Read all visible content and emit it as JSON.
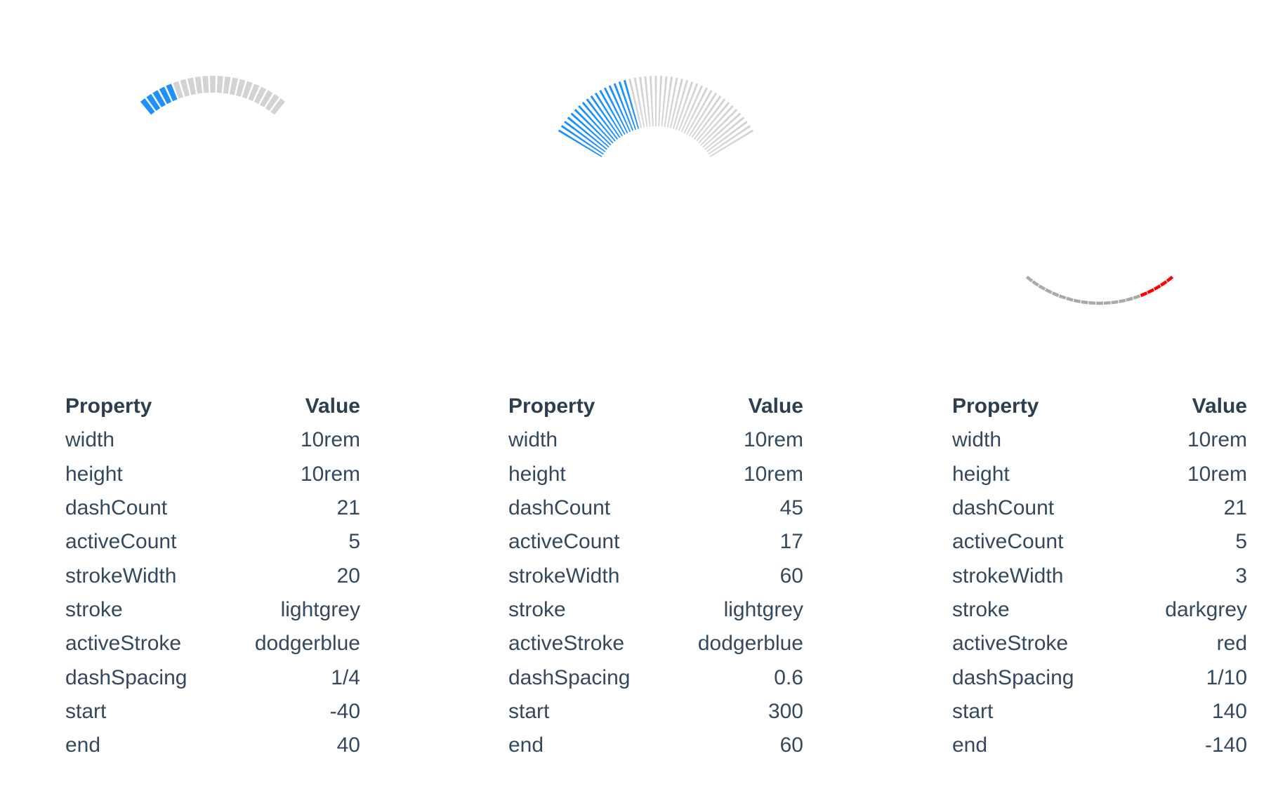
{
  "table_headers": {
    "property": "Property",
    "value": "Value"
  },
  "gauges": [
    {
      "config": {
        "dashCount": 21,
        "activeCount": 5,
        "strokeWidth": 20,
        "stroke": "#d3d3d3",
        "activeStroke": "#1e90ff",
        "dashSpacing": 0.25,
        "start": -40,
        "end": 40
      },
      "rows": [
        {
          "property": "width",
          "value": "10rem"
        },
        {
          "property": "height",
          "value": "10rem"
        },
        {
          "property": "dashCount",
          "value": "21"
        },
        {
          "property": "activeCount",
          "value": "5"
        },
        {
          "property": "strokeWidth",
          "value": "20"
        },
        {
          "property": "stroke",
          "value": "lightgrey"
        },
        {
          "property": "activeStroke",
          "value": "dodgerblue"
        },
        {
          "property": "dashSpacing",
          "value": "1/4"
        },
        {
          "property": "start",
          "value": "-40"
        },
        {
          "property": "end",
          "value": "40"
        }
      ]
    },
    {
      "config": {
        "dashCount": 45,
        "activeCount": 17,
        "strokeWidth": 60,
        "stroke": "#d3d3d3",
        "activeStroke": "#1e90ff",
        "dashSpacing": 0.6,
        "start": 300,
        "end": 60
      },
      "rows": [
        {
          "property": "width",
          "value": "10rem"
        },
        {
          "property": "height",
          "value": "10rem"
        },
        {
          "property": "dashCount",
          "value": "45"
        },
        {
          "property": "activeCount",
          "value": "17"
        },
        {
          "property": "strokeWidth",
          "value": "60"
        },
        {
          "property": "stroke",
          "value": "lightgrey"
        },
        {
          "property": "activeStroke",
          "value": "dodgerblue"
        },
        {
          "property": "dashSpacing",
          "value": "0.6"
        },
        {
          "property": "start",
          "value": "300"
        },
        {
          "property": "end",
          "value": "60"
        }
      ]
    },
    {
      "config": {
        "dashCount": 21,
        "activeCount": 5,
        "strokeWidth": 3,
        "stroke": "#a9a9a9",
        "activeStroke": "#ff0000",
        "dashSpacing": 0.1,
        "start": 140,
        "end": -140
      },
      "rows": [
        {
          "property": "width",
          "value": "10rem"
        },
        {
          "property": "height",
          "value": "10rem"
        },
        {
          "property": "dashCount",
          "value": "21"
        },
        {
          "property": "activeCount",
          "value": "5"
        },
        {
          "property": "strokeWidth",
          "value": "3"
        },
        {
          "property": "stroke",
          "value": "darkgrey"
        },
        {
          "property": "activeStroke",
          "value": "red"
        },
        {
          "property": "dashSpacing",
          "value": "1/10"
        },
        {
          "property": "start",
          "value": "140"
        },
        {
          "property": "end",
          "value": "-140"
        }
      ]
    }
  ]
}
